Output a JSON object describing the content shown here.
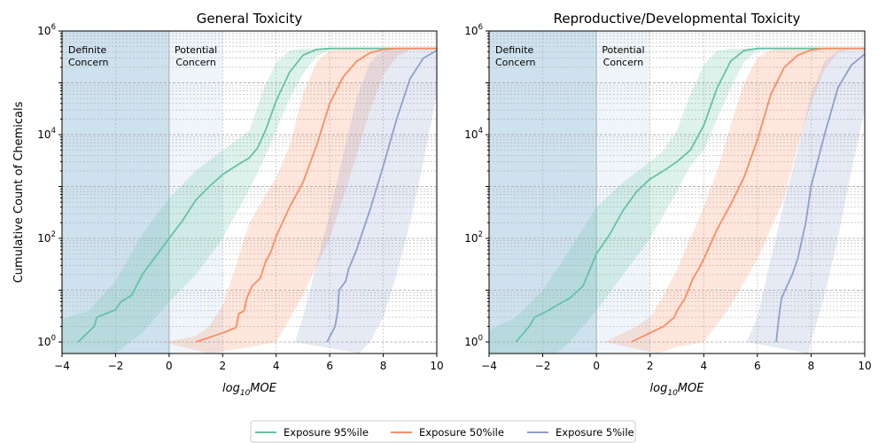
{
  "chart_data": [
    {
      "type": "line",
      "title": "General Toxicity",
      "xlabel": "log10MOE",
      "ylabel": "Cumulative Count of Chemicals",
      "xlim": [
        -4,
        10
      ],
      "ylim": [
        0.6,
        1000000
      ],
      "yscale": "log",
      "grid": true,
      "x_ticks": [
        -4,
        -2,
        0,
        2,
        4,
        6,
        8,
        10
      ],
      "regions": [
        {
          "label": "Definite Concern",
          "x": [
            -4,
            0
          ],
          "color": "#9ec4dd"
        },
        {
          "label": "Potential Concern",
          "x": [
            0,
            2
          ],
          "color": "#dbe9f3"
        }
      ],
      "series": [
        {
          "name": "Exposure 95%ile",
          "color": "#66c2a5",
          "points": [
            [
              -3.4,
              1
            ],
            [
              -2.8,
              2
            ],
            [
              -2.7,
              3
            ],
            [
              -2.5,
              3.3
            ],
            [
              -2.0,
              4.2
            ],
            [
              -1.8,
              6
            ],
            [
              -1.4,
              8
            ],
            [
              -1.0,
              20
            ],
            [
              -0.5,
              45
            ],
            [
              0,
              100
            ],
            [
              0.5,
              220
            ],
            [
              1.0,
              550
            ],
            [
              1.5,
              1000
            ],
            [
              2.0,
              1700
            ],
            [
              2.5,
              2500
            ],
            [
              3.0,
              3600
            ],
            [
              3.3,
              5500
            ],
            [
              3.6,
              12000
            ],
            [
              4.0,
              45000
            ],
            [
              4.5,
              160000
            ],
            [
              5.0,
              340000
            ],
            [
              5.5,
              440000
            ],
            [
              6.0,
              460000
            ],
            [
              10,
              460000
            ]
          ],
          "band_low": [
            [
              -4,
              0.6
            ],
            [
              -2,
              0.6
            ],
            [
              -1,
              1.5
            ],
            [
              0,
              6
            ],
            [
              1,
              20
            ],
            [
              2,
              100
            ],
            [
              2.5,
              300
            ],
            [
              3,
              900
            ],
            [
              3.5,
              3000
            ],
            [
              4,
              12000
            ],
            [
              4.5,
              50000
            ],
            [
              5,
              150000
            ],
            [
              5.5,
              320000
            ],
            [
              6,
              430000
            ],
            [
              6.5,
              460000
            ],
            [
              10,
              460000
            ]
          ],
          "band_high": [
            [
              -4,
              2.8
            ],
            [
              -3,
              4
            ],
            [
              -2,
              15
            ],
            [
              -1,
              120
            ],
            [
              0,
              600
            ],
            [
              1,
              2000
            ],
            [
              2,
              5000
            ],
            [
              3,
              12000
            ],
            [
              3.5,
              70000
            ],
            [
              4,
              250000
            ],
            [
              4.5,
              420000
            ],
            [
              5,
              460000
            ],
            [
              10,
              460000
            ]
          ]
        },
        {
          "name": "Exposure 50%ile",
          "color": "#fc8d62",
          "points": [
            [
              1.0,
              1
            ],
            [
              2.0,
              1.5
            ],
            [
              2.5,
              1.9
            ],
            [
              2.6,
              3.5
            ],
            [
              2.8,
              4
            ],
            [
              2.9,
              7
            ],
            [
              3.1,
              12
            ],
            [
              3.4,
              17
            ],
            [
              3.6,
              35
            ],
            [
              3.8,
              55
            ],
            [
              4.0,
              110
            ],
            [
              4.5,
              400
            ],
            [
              5.0,
              1200
            ],
            [
              5.5,
              6000
            ],
            [
              6.0,
              40000
            ],
            [
              6.5,
              130000
            ],
            [
              7.0,
              260000
            ],
            [
              7.5,
              380000
            ],
            [
              8.0,
              440000
            ],
            [
              8.5,
              460000
            ],
            [
              10,
              460000
            ]
          ],
          "band_low": [
            [
              1.5,
              0.6
            ],
            [
              3,
              0.8
            ],
            [
              4,
              1
            ],
            [
              5,
              8
            ],
            [
              6,
              100
            ],
            [
              6.5,
              600
            ],
            [
              7,
              4000
            ],
            [
              7.5,
              30000
            ],
            [
              8,
              140000
            ],
            [
              8.5,
              320000
            ],
            [
              9,
              440000
            ],
            [
              9.5,
              460000
            ],
            [
              10,
              460000
            ]
          ],
          "band_high": [
            [
              -0.2,
              1
            ],
            [
              1,
              1.3
            ],
            [
              1.5,
              2
            ],
            [
              2,
              5
            ],
            [
              2.5,
              30
            ],
            [
              3,
              200
            ],
            [
              4,
              1500
            ],
            [
              4.5,
              6000
            ],
            [
              5,
              60000
            ],
            [
              5.5,
              250000
            ],
            [
              6,
              420000
            ],
            [
              6.5,
              460000
            ],
            [
              10,
              460000
            ]
          ]
        },
        {
          "name": "Exposure 5%ile",
          "color": "#8da0cb",
          "points": [
            [
              5.9,
              1
            ],
            [
              6.2,
              2
            ],
            [
              6.3,
              4
            ],
            [
              6.35,
              10
            ],
            [
              6.6,
              15
            ],
            [
              6.7,
              25
            ],
            [
              7.0,
              60
            ],
            [
              7.5,
              350
            ],
            [
              8.0,
              2500
            ],
            [
              8.5,
              20000
            ],
            [
              9.0,
              120000
            ],
            [
              9.5,
              300000
            ],
            [
              10,
              420000
            ]
          ],
          "band_low": [
            [
              7.1,
              0.6
            ],
            [
              7.5,
              1
            ],
            [
              8,
              3
            ],
            [
              8.5,
              20
            ],
            [
              9,
              200
            ],
            [
              9.5,
              3000
            ],
            [
              10,
              60000
            ]
          ],
          "band_high": [
            [
              4.7,
              1
            ],
            [
              5.0,
              3
            ],
            [
              5.5,
              30
            ],
            [
              6,
              300
            ],
            [
              6.5,
              4000
            ],
            [
              7,
              50000
            ],
            [
              7.5,
              250000
            ],
            [
              8,
              420000
            ],
            [
              8.5,
              460000
            ],
            [
              10,
              460000
            ]
          ]
        }
      ]
    },
    {
      "type": "line",
      "title": "Reproductive/Developmental Toxicity",
      "xlabel": "log10MOE",
      "ylabel": "",
      "xlim": [
        -4,
        10
      ],
      "ylim": [
        0.6,
        1000000
      ],
      "yscale": "log",
      "grid": true,
      "x_ticks": [
        -4,
        -2,
        0,
        2,
        4,
        6,
        8,
        10
      ],
      "regions": [
        {
          "label": "Definite Concern",
          "x": [
            -4,
            0
          ],
          "color": "#9ec4dd"
        },
        {
          "label": "Potential Concern",
          "x": [
            0,
            2
          ],
          "color": "#dbe9f3"
        }
      ],
      "series": [
        {
          "name": "Exposure 95%ile",
          "color": "#66c2a5",
          "points": [
            [
              -3.0,
              1
            ],
            [
              -2.5,
              2
            ],
            [
              -2.3,
              3
            ],
            [
              -1.9,
              3.8
            ],
            [
              -1.5,
              5
            ],
            [
              -1.0,
              7
            ],
            [
              -0.5,
              12
            ],
            [
              0,
              50
            ],
            [
              0.5,
              120
            ],
            [
              1.0,
              350
            ],
            [
              1.5,
              800
            ],
            [
              2.0,
              1400
            ],
            [
              2.5,
              2000
            ],
            [
              3.0,
              3000
            ],
            [
              3.5,
              5000
            ],
            [
              4.0,
              15000
            ],
            [
              4.5,
              80000
            ],
            [
              5.0,
              260000
            ],
            [
              5.5,
              420000
            ],
            [
              6.0,
              460000
            ],
            [
              10,
              460000
            ]
          ],
          "band_low": [
            [
              -4,
              0.6
            ],
            [
              -1.5,
              0.6
            ],
            [
              -1,
              1
            ],
            [
              0,
              4
            ],
            [
              1,
              20
            ],
            [
              2,
              100
            ],
            [
              3,
              800
            ],
            [
              3.5,
              2500
            ],
            [
              4,
              5000
            ],
            [
              4.5,
              20000
            ],
            [
              5,
              80000
            ],
            [
              5.5,
              250000
            ],
            [
              6,
              420000
            ],
            [
              6.5,
              460000
            ],
            [
              10,
              460000
            ]
          ],
          "band_high": [
            [
              -4,
              1.7
            ],
            [
              -3,
              3
            ],
            [
              -2,
              10
            ],
            [
              -1,
              60
            ],
            [
              0,
              400
            ],
            [
              1,
              1200
            ],
            [
              2,
              3000
            ],
            [
              2.5,
              5000
            ],
            [
              3,
              12000
            ],
            [
              3.5,
              60000
            ],
            [
              4,
              220000
            ],
            [
              4.5,
              420000
            ],
            [
              5,
              460000
            ],
            [
              10,
              460000
            ]
          ]
        },
        {
          "name": "Exposure 50%ile",
          "color": "#fc8d62",
          "points": [
            [
              1.3,
              1
            ],
            [
              2.0,
              1.5
            ],
            [
              2.5,
              2
            ],
            [
              2.9,
              3
            ],
            [
              3.0,
              4
            ],
            [
              3.3,
              7
            ],
            [
              3.6,
              17
            ],
            [
              3.8,
              25
            ],
            [
              4.0,
              40
            ],
            [
              4.5,
              150
            ],
            [
              5.0,
              450
            ],
            [
              5.5,
              1500
            ],
            [
              6.0,
              8000
            ],
            [
              6.5,
              60000
            ],
            [
              7.0,
              200000
            ],
            [
              7.5,
              340000
            ],
            [
              8.0,
              430000
            ],
            [
              8.5,
              460000
            ],
            [
              10,
              460000
            ]
          ],
          "band_low": [
            [
              2.3,
              0.6
            ],
            [
              3,
              0.8
            ],
            [
              4,
              1
            ],
            [
              5,
              5
            ],
            [
              6,
              40
            ],
            [
              7,
              600
            ],
            [
              7.5,
              6000
            ],
            [
              8,
              40000
            ],
            [
              8.5,
              180000
            ],
            [
              9,
              380000
            ],
            [
              9.5,
              460000
            ],
            [
              10,
              460000
            ]
          ],
          "band_high": [
            [
              0.3,
              1
            ],
            [
              1.5,
              2
            ],
            [
              2,
              3
            ],
            [
              2.5,
              8
            ],
            [
              3,
              25
            ],
            [
              3.5,
              100
            ],
            [
              4,
              400
            ],
            [
              4.5,
              2000
            ],
            [
              5,
              15000
            ],
            [
              5.5,
              100000
            ],
            [
              6,
              300000
            ],
            [
              6.5,
              430000
            ],
            [
              7,
              460000
            ],
            [
              10,
              460000
            ]
          ]
        },
        {
          "name": "Exposure 5%ile",
          "color": "#8da0cb",
          "points": [
            [
              6.7,
              1
            ],
            [
              6.8,
              3
            ],
            [
              6.9,
              7
            ],
            [
              7.1,
              12
            ],
            [
              7.3,
              20
            ],
            [
              7.5,
              40
            ],
            [
              7.8,
              200
            ],
            [
              8.0,
              1000
            ],
            [
              8.5,
              10000
            ],
            [
              9.0,
              80000
            ],
            [
              9.5,
              220000
            ],
            [
              10,
              360000
            ]
          ],
          "band_low": [
            [
              7.9,
              0.6
            ],
            [
              8,
              1
            ],
            [
              8.5,
              8
            ],
            [
              9,
              100
            ],
            [
              9.5,
              2000
            ],
            [
              10,
              30000
            ]
          ],
          "band_high": [
            [
              5.6,
              1
            ],
            [
              6,
              3
            ],
            [
              6.5,
              40
            ],
            [
              7,
              500
            ],
            [
              7.5,
              5000
            ],
            [
              8,
              60000
            ],
            [
              8.5,
              260000
            ],
            [
              9,
              420000
            ],
            [
              9.5,
              460000
            ],
            [
              10,
              460000
            ]
          ]
        }
      ]
    }
  ],
  "legend": {
    "entries": [
      {
        "label": "Exposure 95%ile",
        "color": "#66c2a5"
      },
      {
        "label": "Exposure 50%ile",
        "color": "#fc8d62"
      },
      {
        "label": "Exposure 5%ile",
        "color": "#8da0cb"
      }
    ],
    "placement": "bottom-center"
  }
}
